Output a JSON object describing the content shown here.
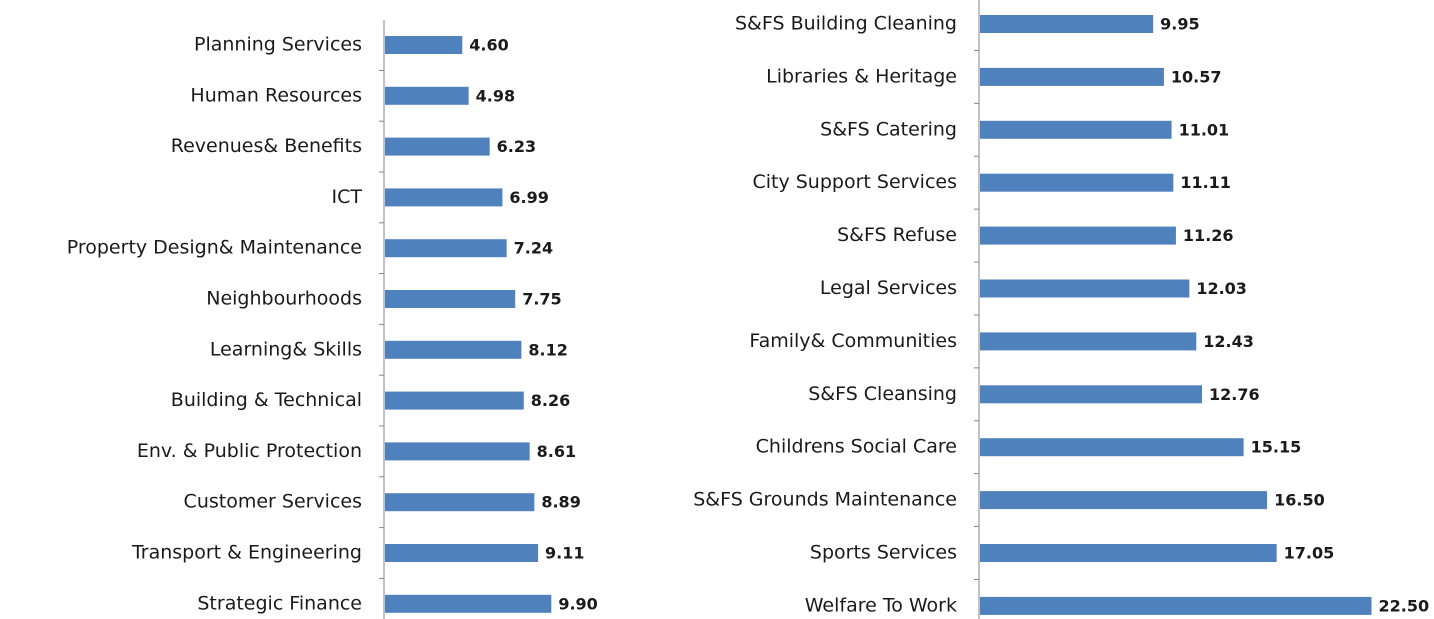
{
  "chart_data": [
    {
      "type": "bar",
      "orientation": "horizontal",
      "color": "#4f81bd",
      "categories": [
        "Planning Services",
        "Human Resources",
        "Revenues& Benefits",
        "ICT",
        "Property Design& Maintenance",
        "Neighbourhoods",
        "Learning& Skills",
        "Building & Technical",
        "Env. & Public Protection",
        "Customer Services",
        "Transport & Engineering",
        "Strategic Finance"
      ],
      "values": [
        4.6,
        4.98,
        6.23,
        6.99,
        7.24,
        7.75,
        8.12,
        8.26,
        8.61,
        8.89,
        9.11,
        9.9
      ],
      "value_labels": [
        "4.60",
        "4.98",
        "6.23",
        "6.99",
        "7.24",
        "7.75",
        "8.12",
        "8.26",
        "8.61",
        "8.89",
        "9.11",
        "9.90"
      ]
    },
    {
      "type": "bar",
      "orientation": "horizontal",
      "color": "#4f81bd",
      "categories": [
        "S&FS Building Cleaning",
        "Libraries & Heritage",
        "S&FS Catering",
        "City Support Services",
        "S&FS Refuse",
        "Legal Services",
        "Family& Communities",
        "S&FS Cleansing",
        "Childrens Social Care",
        "S&FS Grounds Maintenance",
        "Sports Services",
        "Welfare To Work"
      ],
      "values": [
        9.95,
        10.57,
        11.01,
        11.11,
        11.26,
        12.03,
        12.43,
        12.76,
        15.15,
        16.5,
        17.05,
        22.5
      ],
      "value_labels": [
        "9.95",
        "10.57",
        "11.01",
        "11.11",
        "11.26",
        "12.03",
        "12.43",
        "12.76",
        "15.15",
        "16.50",
        "17.05",
        "22.50"
      ]
    }
  ]
}
